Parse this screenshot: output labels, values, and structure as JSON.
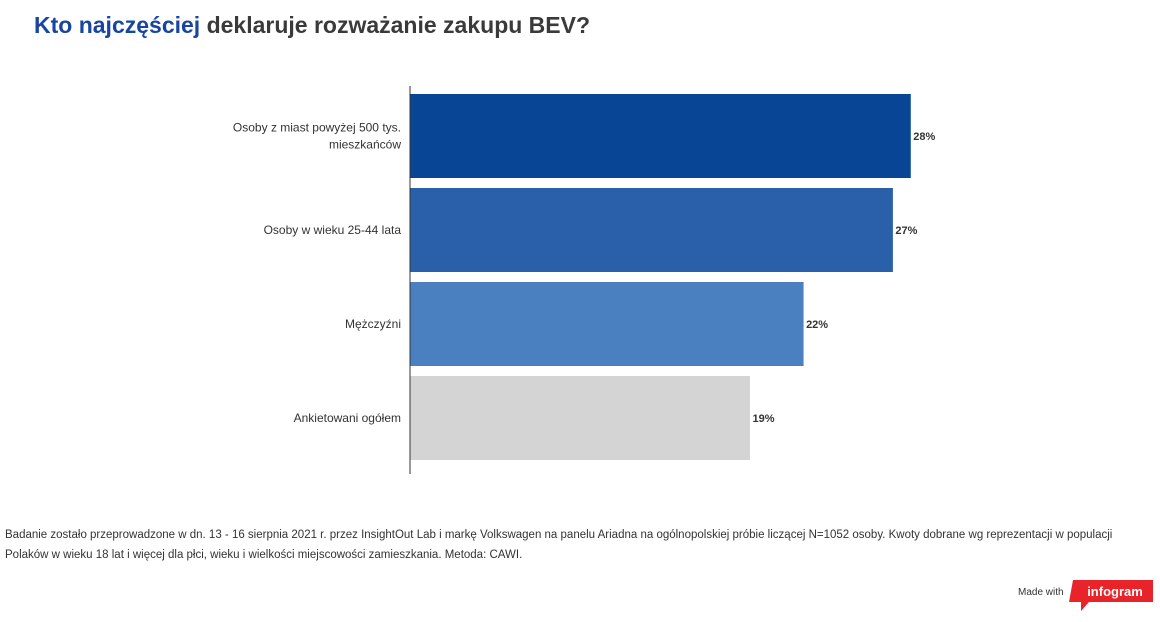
{
  "title": {
    "highlight": "Kto najczęściej",
    "rest": "deklaruje rozważanie zakupu BEV?"
  },
  "colors": {
    "title_highlight": "#1845a0",
    "bar_1": "#084595",
    "bar_2": "#2960a9",
    "bar_3": "#4a80c0",
    "bar_4": "#d5d4d5",
    "brand_red": "#e8232a"
  },
  "chart_data": {
    "type": "bar",
    "orientation": "horizontal",
    "categories": [
      [
        "Osoby z miast powyżej 500 tys.",
        "mieszkańców"
      ],
      [
        "Osoby w wieku 25-44 lata"
      ],
      [
        "Mężczyźni"
      ],
      [
        "Ankietowani ogółem"
      ]
    ],
    "values": [
      28,
      27,
      22,
      19
    ],
    "value_labels": [
      "28%",
      "27%",
      "22%",
      "19%"
    ],
    "xlim": [
      0,
      30
    ],
    "grid": false
  },
  "footnote": "Badanie zostało przeprowadzone w dn. 13 - 16 sierpnia 2021 r. przez InsightOut Lab i markę Volkswagen na panelu Ariadna na ogólnopolskiej próbie liczącej N=1052 osoby. Kwoty dobrane wg reprezentacji w populacji Polaków w wieku 18 lat i więcej dla płci, wieku i wielkości miejscowości zamieszkania. Metoda: CAWI.",
  "footer": {
    "made_with": "Made with",
    "brand": "infogram"
  }
}
